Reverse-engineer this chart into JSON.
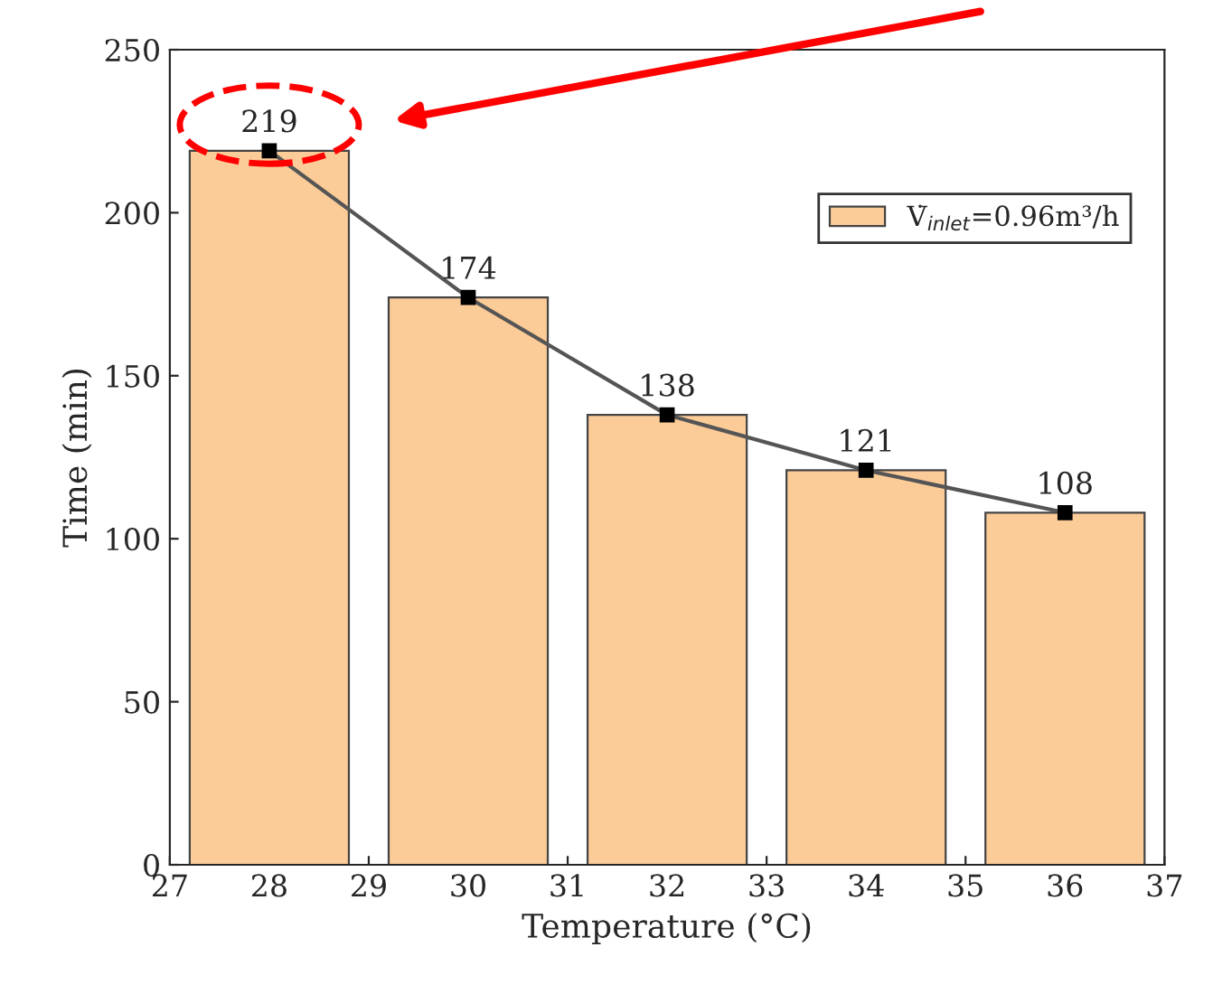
{
  "chart_data": {
    "type": "bar",
    "xlabel": "Temperature (°C)",
    "ylabel": "Time (min)",
    "x": [
      28,
      30,
      32,
      34,
      36
    ],
    "series": [
      {
        "name": "V̇$_{inlet}$=0.96m³/h",
        "color": "#fbcb98",
        "values": [
          219,
          174,
          138,
          121,
          108
        ]
      },
      {
        "type": "line",
        "color": "#555555",
        "values": [
          219,
          174,
          138,
          121,
          108
        ],
        "value_labels": [
          "219",
          "174",
          "138",
          "121",
          "108"
        ],
        "marker": "square"
      }
    ],
    "xlim": [
      27,
      37
    ],
    "ylim": [
      0,
      250
    ],
    "xticks": [
      27,
      28,
      29,
      30,
      31,
      32,
      33,
      34,
      35,
      36,
      37
    ],
    "yticks": [
      0,
      50,
      100,
      150,
      200,
      250
    ],
    "grid": false,
    "legend": "top right"
  }
}
